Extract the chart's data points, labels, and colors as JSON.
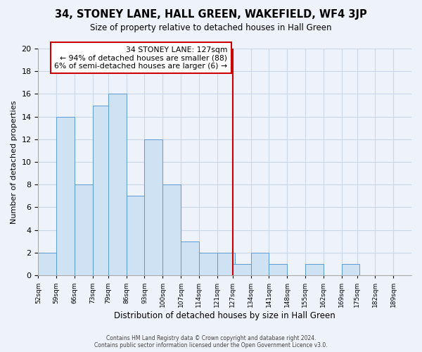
{
  "title": "34, STONEY LANE, HALL GREEN, WAKEFIELD, WF4 3JP",
  "subtitle": "Size of property relative to detached houses in Hall Green",
  "xlabel": "Distribution of detached houses by size in Hall Green",
  "ylabel": "Number of detached properties",
  "footer_lines": [
    "Contains HM Land Registry data © Crown copyright and database right 2024.",
    "Contains public sector information licensed under the Open Government Licence v3.0."
  ],
  "bin_labels": [
    "52sqm",
    "59sqm",
    "66sqm",
    "73sqm",
    "79sqm",
    "86sqm",
    "93sqm",
    "100sqm",
    "107sqm",
    "114sqm",
    "121sqm",
    "127sqm",
    "134sqm",
    "141sqm",
    "148sqm",
    "155sqm",
    "162sqm",
    "169sqm",
    "175sqm",
    "182sqm",
    "189sqm"
  ],
  "bin_left_edges": [
    52,
    59,
    66,
    73,
    79,
    86,
    93,
    100,
    107,
    114,
    121,
    127,
    134,
    141,
    148,
    155,
    162,
    169,
    175,
    182,
    189
  ],
  "bin_width": 7,
  "bar_heights": [
    2,
    14,
    8,
    15,
    16,
    7,
    12,
    8,
    3,
    2,
    2,
    1,
    2,
    1,
    0,
    1,
    0,
    1,
    0,
    0
  ],
  "bar_color": "#cfe2f3",
  "bar_edge_color": "#5b9bd5",
  "property_line_x": 127,
  "property_line_color": "#cc0000",
  "annotation_text": "34 STONEY LANE: 127sqm\n← 94% of detached houses are smaller (88)\n6% of semi-detached houses are larger (6) →",
  "annotation_box_color": "white",
  "annotation_box_edge_color": "#cc0000",
  "ylim": [
    0,
    20
  ],
  "yticks": [
    0,
    2,
    4,
    6,
    8,
    10,
    12,
    14,
    16,
    18,
    20
  ],
  "grid_color": "#c8d8e8",
  "background_color": "#eef2fb"
}
